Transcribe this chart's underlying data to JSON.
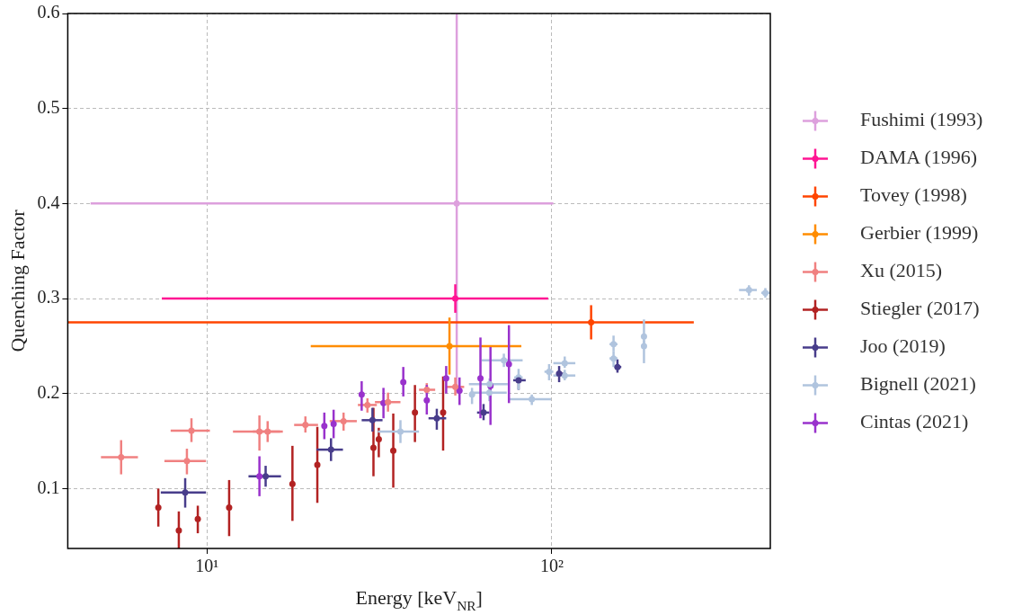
{
  "chart_data": {
    "type": "scatter",
    "xlabel": "Energy [keV$_{NR}$]",
    "ylabel": "Quenching Factor",
    "log": "x",
    "grid": true,
    "legend": "right",
    "marker": "circle",
    "xlim": [
      3.95,
      430
    ],
    "ylim": [
      0.037,
      0.6
    ],
    "xticks": [
      {
        "value": 10,
        "label": "10¹"
      },
      {
        "value": 100,
        "label": "10²"
      }
    ],
    "yticks": [
      0.1,
      0.2,
      0.3,
      0.4,
      0.5,
      0.6
    ],
    "series": [
      {
        "name": "Fushimi (1993)",
        "color": "#dda0dd",
        "x": [
          53
        ],
        "values": [
          0.4
        ],
        "errors": [
          [
            0.2,
            0.6
          ]
        ],
        "xerrors": [
          [
            4.6,
            101
          ]
        ]
      },
      {
        "name": "DAMA (1996)",
        "color": "#ff1493",
        "x": [
          52.5
        ],
        "values": [
          0.3
        ],
        "errors": [
          0.015
        ],
        "xerrors": [
          [
            7.4,
            97.6
          ]
        ]
      },
      {
        "name": "Tovey (1998)",
        "color": "#ff4500",
        "x": [
          130
        ],
        "values": [
          0.275
        ],
        "errors": [
          0.018
        ],
        "xerrors": [
          [
            3.95,
            258
          ]
        ]
      },
      {
        "name": "Gerbier (1999)",
        "color": "#ff8c00",
        "x": [
          50.5
        ],
        "values": [
          0.25
        ],
        "errors": [
          0.03
        ],
        "xerrors": [
          [
            20.0,
            81.6
          ]
        ]
      },
      {
        "name": "Xu (2015)",
        "color": "#f08080",
        "x": [
          5.64,
          9.02,
          8.75,
          14.2,
          15.0,
          19.3,
          24.9,
          29.2,
          33.5,
          43.4,
          52.5
        ],
        "values": [
          0.133,
          0.161,
          0.129,
          0.16,
          0.16,
          0.167,
          0.171,
          0.188,
          0.191,
          0.204,
          0.207
        ],
        "errors": [
          [
            0.115,
            0.151
          ],
          [
            0.149,
            0.174
          ],
          [
            0.115,
            0.142
          ],
          [
            0.14,
            0.177
          ],
          [
            0.149,
            0.171
          ],
          [
            0.159,
            0.176
          ],
          [
            0.161,
            0.18
          ],
          [
            0.18,
            0.195
          ],
          [
            0.181,
            0.201
          ],
          [
            0.2,
            0.211
          ],
          [
            0.198,
            0.217
          ]
        ],
        "xerrors": [
          [
            4.93,
            6.31
          ],
          [
            7.85,
            10.2
          ],
          [
            7.53,
            9.94
          ],
          [
            11.9,
            16.3
          ],
          [
            13.6,
            16.6
          ],
          [
            17.9,
            21.0
          ],
          [
            22.7,
            27.2
          ],
          [
            27.4,
            31.1
          ],
          [
            30.7,
            36.4
          ],
          [
            41.2,
            45.9
          ],
          [
            49.4,
            55.7
          ]
        ]
      },
      {
        "name": "Stiegler (2017)",
        "color": "#b22222",
        "x": [
          7.23,
          8.29,
          9.41,
          11.6,
          17.7,
          20.9,
          30.4,
          31.5,
          34.7,
          40.1,
          48.4
        ],
        "values": [
          0.08,
          0.056,
          0.068,
          0.08,
          0.105,
          0.125,
          0.143,
          0.152,
          0.14,
          0.18,
          0.18
        ],
        "errors": [
          [
            0.06,
            0.1
          ],
          [
            0.037,
            0.076
          ],
          [
            0.053,
            0.082
          ],
          [
            0.05,
            0.109
          ],
          [
            0.066,
            0.145
          ],
          [
            0.085,
            0.165
          ],
          [
            0.113,
            0.185
          ],
          [
            0.133,
            0.164
          ],
          [
            0.101,
            0.179
          ],
          [
            0.149,
            0.209
          ],
          [
            0.14,
            0.218
          ]
        ]
      },
      {
        "name": "Joo (2019)",
        "color": "#483d8b",
        "x": [
          8.65,
          14.8,
          22.9,
          30.2,
          46.4,
          63.4,
          80.1,
          105,
          155
        ],
        "values": [
          0.096,
          0.113,
          0.141,
          0.172,
          0.174,
          0.18,
          0.214,
          0.221,
          0.228
        ],
        "errors": [
          [
            0.08,
            0.111
          ],
          [
            0.102,
            0.124
          ],
          [
            0.129,
            0.153
          ],
          [
            0.16,
            0.185
          ],
          [
            0.162,
            0.184
          ],
          [
            0.172,
            0.189
          ],
          [
            0.204,
            0.217
          ],
          [
            0.212,
            0.229
          ],
          [
            0.222,
            0.236
          ]
        ],
        "xerrors": [
          [
            7.35,
            9.94
          ],
          [
            13.2,
            16.4
          ],
          [
            20.8,
            24.8
          ],
          [
            28.1,
            32.3
          ],
          [
            43.9,
            49.4
          ],
          [
            60.7,
            65.9
          ],
          [
            77.3,
            84.0
          ],
          [
            103,
            108
          ],
          [
            152,
            159
          ]
        ]
      },
      {
        "name": "Bignell (2021)",
        "color": "#b0c4de",
        "x": [
          36.4,
          58.7,
          65.9,
          66,
          72.6,
          80.1,
          87.5,
          98.2,
          109,
          109,
          151,
          151,
          185,
          185,
          373,
          416
        ],
        "values": [
          0.16,
          0.199,
          0.201,
          0.21,
          0.235,
          0.217,
          0.194,
          0.223,
          0.232,
          0.219,
          0.252,
          0.237,
          0.26,
          0.25,
          0.309,
          0.306
        ],
        "errors": [
          [
            0.148,
            0.172
          ],
          [
            0.189,
            0.206
          ],
          [
            0.192,
            0.209
          ],
          [
            0.204,
            0.216
          ],
          [
            0.228,
            0.242
          ],
          [
            0.204,
            0.226
          ],
          [
            0.188,
            0.199
          ],
          [
            0.214,
            0.231
          ],
          [
            0.227,
            0.239
          ],
          [
            0.214,
            0.225
          ],
          [
            0.245,
            0.261
          ],
          [
            0.228,
            0.245
          ],
          [
            0.251,
            0.278
          ],
          [
            0.232,
            0.256
          ],
          [
            0.303,
            0.314
          ],
          [
            0.301,
            0.311
          ]
        ],
        "xerrors": [
          [
            31.3,
            41.2
          ],
          [
            57.7,
            59.8
          ],
          [
            58.0,
            74.0
          ],
          [
            57.5,
            74.5
          ],
          [
            62.6,
            82.3
          ],
          [
            77.8,
            82.3
          ],
          [
            75.5,
            99.4
          ],
          [
            95.2,
            101
          ],
          [
            101,
            117
          ],
          [
            101,
            117
          ],
          [
            147,
            155
          ],
          [
            147,
            155
          ],
          [
            182,
            188
          ],
          [
            182,
            188
          ],
          [
            349,
            393
          ],
          [
            405,
            430
          ]
        ]
      },
      {
        "name": "Cintas (2021)",
        "color": "#9932cc",
        "x": [
          14.2,
          21.9,
          23.3,
          28.1,
          32.5,
          37.1,
          43.4,
          49.4,
          54.0,
          62.1,
          66.4,
          75.1
        ],
        "values": [
          0.113,
          0.166,
          0.168,
          0.199,
          0.19,
          0.212,
          0.193,
          0.216,
          0.203,
          0.216,
          0.208,
          0.231
        ],
        "errors": [
          [
            0.092,
            0.134
          ],
          [
            0.152,
            0.18
          ],
          [
            0.153,
            0.183
          ],
          [
            0.182,
            0.213
          ],
          [
            0.174,
            0.206
          ],
          [
            0.197,
            0.228
          ],
          [
            0.178,
            0.209
          ],
          [
            0.2,
            0.229
          ],
          [
            0.188,
            0.217
          ],
          [
            0.174,
            0.259
          ],
          [
            0.167,
            0.249
          ],
          [
            0.19,
            0.272
          ]
        ]
      }
    ]
  }
}
